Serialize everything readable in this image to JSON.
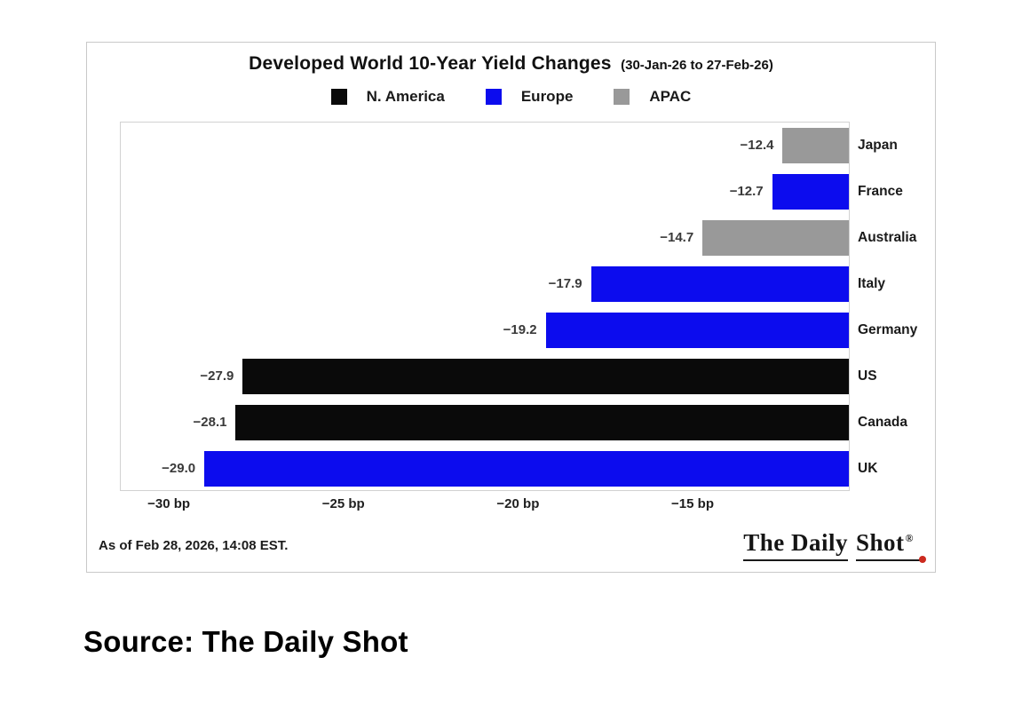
{
  "caption": "Source: The Daily Shot",
  "chart": {
    "title": "Developed World 10-Year Yield Changes",
    "subtitle": "(30-Jan-26 to 27-Feb-26)",
    "as_of": "As of Feb 28, 2026, 14:08 EST."
  },
  "logo": {
    "part1": "The Daily",
    "part2": "Shot",
    "registered": "®",
    "dot_color": "#cc2a1f"
  },
  "chart_data": {
    "type": "bar",
    "orientation": "horizontal",
    "title": "Developed World 10-Year Yield Changes",
    "subtitle": "(30-Jan-26 to 27-Feb-26)",
    "unit": "bp",
    "legend_position": "top-center",
    "legend": [
      {
        "label": "N. America",
        "color": "#0a0a0a"
      },
      {
        "label": "Europe",
        "color": "#0c0cee"
      },
      {
        "label": "APAC",
        "color": "#999999"
      }
    ],
    "categories": [
      "Japan",
      "France",
      "Australia",
      "Italy",
      "Germany",
      "US",
      "Canada",
      "UK"
    ],
    "values": [
      -12.4,
      -12.7,
      -14.7,
      -17.9,
      -19.2,
      -27.9,
      -28.1,
      -29.0
    ],
    "groups": [
      "APAC",
      "Europe",
      "APAC",
      "Europe",
      "Europe",
      "N. America",
      "N. America",
      "Europe"
    ],
    "value_labels": [
      "−12.4",
      "−12.7",
      "−14.7",
      "−17.9",
      "−19.2",
      "−27.9",
      "−28.1",
      "−29.0"
    ],
    "bars_anchored_right": true,
    "xlim": [
      -31.4,
      -10.5
    ],
    "xticks": [
      -30,
      -25,
      -20,
      -15
    ],
    "xtick_labels": [
      "−30 bp",
      "−25 bp",
      "−20 bp",
      "−15 bp"
    ],
    "grid": false
  }
}
